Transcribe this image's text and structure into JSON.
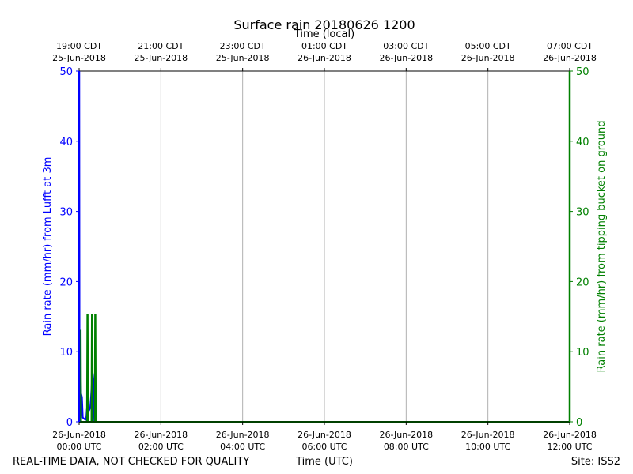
{
  "chart_data": {
    "type": "line",
    "title": "Surface rain 20180626 1200",
    "top_axis_label": "Time (local)",
    "xlabel": "Time (UTC)",
    "ylabel_left": "Rain rate (mm/hr) from Lufft at 3m",
    "ylabel_right": "Rain rate (mm/hr) from tipping bucket on ground",
    "footer_left": "REAL-TIME DATA, NOT CHECKED FOR QUALITY",
    "footer_right": "Site: ISS2",
    "x_range_hours": [
      0,
      12
    ],
    "ylim": [
      0,
      50
    ],
    "y_ticks": [
      0,
      10,
      20,
      30,
      40,
      50
    ],
    "x_ticks_bottom": [
      {
        "hour": 0,
        "line1": "26-Jun-2018",
        "line2": "00:00 UTC"
      },
      {
        "hour": 2,
        "line1": "26-Jun-2018",
        "line2": "02:00 UTC"
      },
      {
        "hour": 4,
        "line1": "26-Jun-2018",
        "line2": "04:00 UTC"
      },
      {
        "hour": 6,
        "line1": "26-Jun-2018",
        "line2": "06:00 UTC"
      },
      {
        "hour": 8,
        "line1": "26-Jun-2018",
        "line2": "08:00 UTC"
      },
      {
        "hour": 10,
        "line1": "26-Jun-2018",
        "line2": "10:00 UTC"
      },
      {
        "hour": 12,
        "line1": "26-Jun-2018",
        "line2": "12:00 UTC"
      }
    ],
    "x_ticks_top": [
      {
        "hour": 0,
        "line1": "19:00 CDT",
        "line2": "25-Jun-2018"
      },
      {
        "hour": 2,
        "line1": "21:00 CDT",
        "line2": "25-Jun-2018"
      },
      {
        "hour": 4,
        "line1": "23:00 CDT",
        "line2": "25-Jun-2018"
      },
      {
        "hour": 6,
        "line1": "01:00 CDT",
        "line2": "26-Jun-2018"
      },
      {
        "hour": 8,
        "line1": "03:00 CDT",
        "line2": "26-Jun-2018"
      },
      {
        "hour": 10,
        "line1": "05:00 CDT",
        "line2": "26-Jun-2018"
      },
      {
        "hour": 12,
        "line1": "07:00 CDT",
        "line2": "26-Jun-2018"
      }
    ],
    "grid": true,
    "series": [
      {
        "axis": "left",
        "color": "#0000ff",
        "x": [
          0.0,
          0.01,
          0.02,
          0.03,
          0.05,
          0.07,
          0.09,
          0.11,
          0.13,
          0.15,
          0.17,
          0.19,
          0.21,
          0.23,
          0.25,
          0.27,
          0.29,
          0.31,
          0.33,
          0.35,
          0.37,
          0.39,
          0.41,
          0.43,
          0.45,
          12.0
        ],
        "y": [
          50.0,
          13.0,
          9.0,
          7.0,
          4.0,
          3.5,
          0.6,
          0.5,
          0.4,
          0.3,
          0.3,
          1.8,
          2.3,
          1.5,
          1.7,
          2.0,
          3.5,
          5.5,
          7.0,
          6.0,
          0.0,
          0.0,
          0.0,
          0.0,
          0.0,
          0.0
        ]
      },
      {
        "axis": "right",
        "color": "#008000",
        "x": [
          0.0,
          0.02,
          0.03,
          0.04,
          0.05,
          0.06,
          0.19,
          0.2,
          0.21,
          0.22,
          0.3,
          0.31,
          0.32,
          0.33,
          0.38,
          0.39,
          0.4,
          0.41,
          12.0
        ],
        "y": [
          0.0,
          0.0,
          13.0,
          13.0,
          0.0,
          0.0,
          0.0,
          15.2,
          15.2,
          0.0,
          0.0,
          15.2,
          15.2,
          0.0,
          0.0,
          15.2,
          15.2,
          0.0,
          0.0
        ]
      }
    ]
  }
}
